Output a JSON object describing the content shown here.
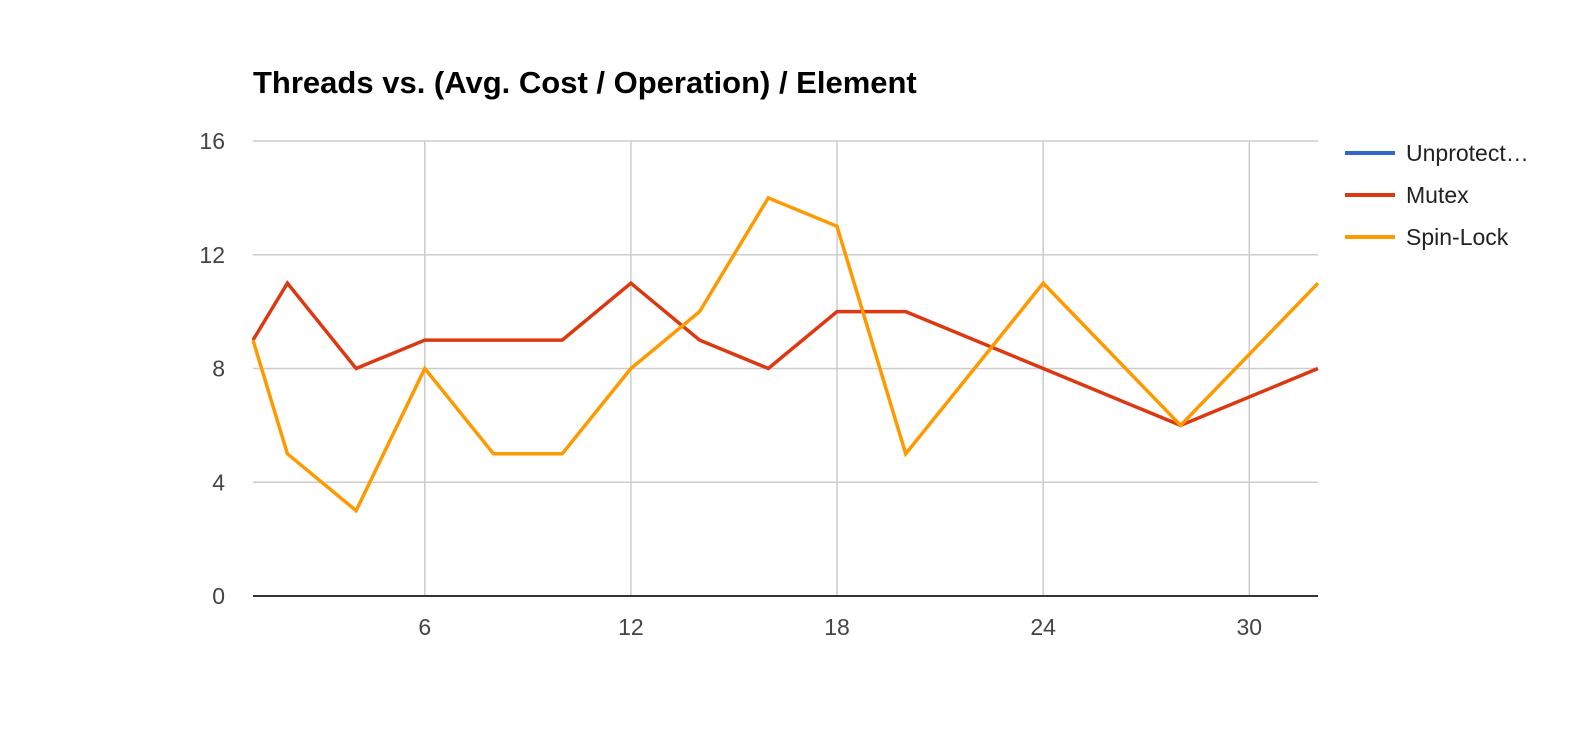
{
  "chart_data": {
    "type": "line",
    "title": "Threads vs. (Avg. Cost / Operation) / Element",
    "xlabel": "",
    "ylabel": "",
    "xlim": [
      1,
      32
    ],
    "ylim": [
      0,
      16
    ],
    "x_ticks": [
      6,
      12,
      18,
      24,
      30
    ],
    "y_ticks": [
      0,
      4,
      8,
      12,
      16
    ],
    "grid": true,
    "legend_position": "right",
    "series": [
      {
        "name": "Unprotect…",
        "color": "#3366cc",
        "x": [],
        "values": []
      },
      {
        "name": "Mutex",
        "color": "#dc3912",
        "x": [
          1,
          2,
          4,
          6,
          8,
          10,
          12,
          14,
          16,
          18,
          20,
          24,
          28,
          32
        ],
        "values": [
          9,
          11,
          8,
          9,
          9,
          9,
          11,
          9,
          8,
          10,
          10,
          8,
          6,
          8
        ]
      },
      {
        "name": "Spin-Lock",
        "color": "#ff9900",
        "x": [
          1,
          2,
          4,
          6,
          8,
          10,
          12,
          14,
          16,
          18,
          20,
          24,
          28,
          32
        ],
        "values": [
          9,
          5,
          3,
          8,
          5,
          5,
          8,
          10,
          14,
          13,
          5,
          11,
          6,
          11
        ]
      }
    ]
  },
  "colors": {
    "grid": "#cccccc",
    "baseline": "#333333",
    "background": "#ffffff"
  }
}
